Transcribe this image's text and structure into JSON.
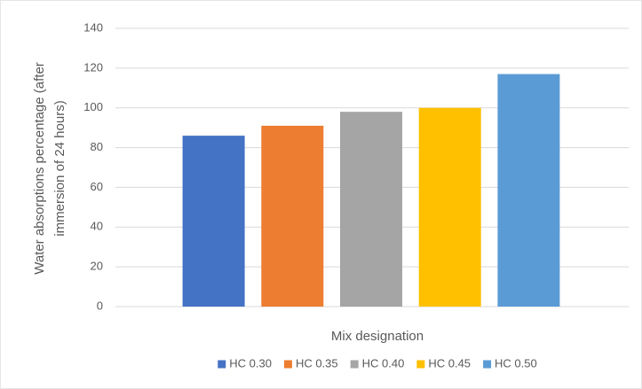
{
  "chart_data": {
    "type": "bar",
    "y_label": [
      "Water absorptions percentage  (after",
      "immersion of 24 hours)"
    ],
    "x_label": "Mix designation",
    "categories": [
      null
    ],
    "series": [
      {
        "name": "HC 0.30",
        "color": "#4472c4",
        "values": [
          86
        ]
      },
      {
        "name": "HC 0.35",
        "color": "#ed7d31",
        "values": [
          91
        ]
      },
      {
        "name": "HC 0.40",
        "color": "#a5a5a5",
        "values": [
          98
        ]
      },
      {
        "name": "HC 0.45",
        "color": "#ffc000",
        "values": [
          100
        ]
      },
      {
        "name": "HC 0.50",
        "color": "#5b9bd5",
        "values": [
          117
        ]
      }
    ],
    "ylim": [
      0,
      140
    ],
    "yticks": [
      0,
      20,
      40,
      60,
      80,
      100,
      120,
      140
    ],
    "grid": true,
    "legend": "bottom"
  }
}
